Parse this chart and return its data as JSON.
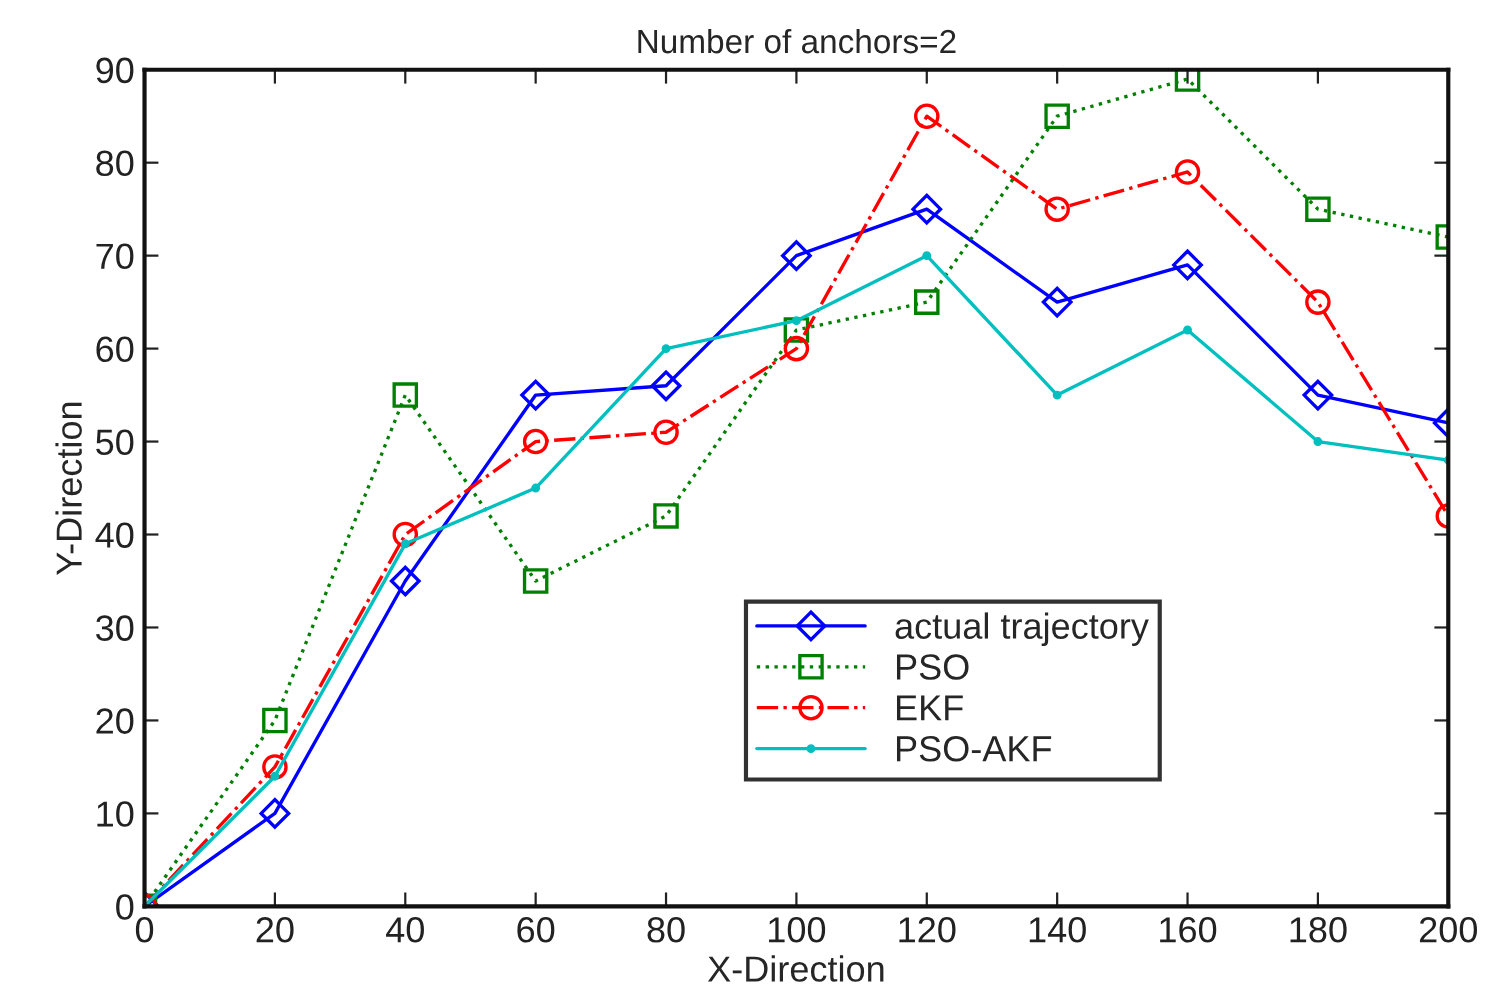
{
  "chart_data": {
    "type": "line",
    "title": "Number of anchors=2",
    "xlabel": "X-Direction",
    "ylabel": "Y-Direction",
    "x": [
      0,
      20,
      40,
      60,
      80,
      100,
      120,
      140,
      160,
      180,
      200
    ],
    "series": [
      {
        "name": "actual trajectory",
        "color": "#0000ff",
        "marker": "diamond",
        "line_style": "solid",
        "values": [
          0,
          10,
          35,
          55,
          56,
          70,
          75,
          65,
          69,
          55,
          52
        ]
      },
      {
        "name": "PSO",
        "color": "#008000",
        "marker": "square",
        "line_style": "dotted",
        "values": [
          0,
          20,
          55,
          35,
          42,
          62,
          65,
          85,
          89,
          75,
          72
        ]
      },
      {
        "name": "EKF",
        "color": "#ff0000",
        "marker": "circle",
        "line_style": "dashdot",
        "values": [
          0,
          15,
          40,
          50,
          51,
          60,
          85,
          75,
          79,
          65,
          42
        ]
      },
      {
        "name": "PSO-AKF",
        "color": "#00bfbf",
        "marker": "point",
        "line_style": "solid",
        "values": [
          0,
          14,
          39,
          45,
          60,
          63,
          70,
          55,
          62,
          50,
          48
        ]
      }
    ],
    "xlim": [
      0,
      200
    ],
    "xticks": [
      0,
      20,
      40,
      60,
      80,
      100,
      120,
      140,
      160,
      180,
      200
    ],
    "ylim": [
      0,
      90
    ],
    "yticks": [
      0,
      10,
      20,
      30,
      40,
      50,
      60,
      70,
      80,
      90
    ],
    "grid": false,
    "legend": "lower center"
  }
}
